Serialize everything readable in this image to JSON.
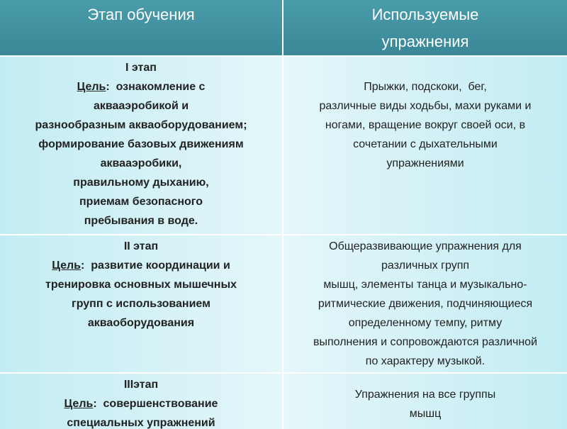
{
  "header": {
    "col1": "Этап обучения",
    "col2": [
      "Используемые",
      "упражнения"
    ]
  },
  "rows": [
    {
      "stage": "I этап",
      "goal_label": "Цель",
      "goal_lines": [
        ":  ознакомление с",
        "аквааэробикой и",
        "разнообразным акваоборудованием;",
        "формирование базовых движениям",
        "аквааэробики,",
        "правильному дыханию,",
        "приемам безопасного",
        "пребывания в воде."
      ],
      "exercises": [
        "Прыжки, подскоки,  бег,",
        "различные виды ходьбы, махи руками и",
        "ногами, вращение вокруг своей оси, в",
        "сочетании с дыхательными",
        "упражнениями"
      ]
    },
    {
      "stage": "II этап",
      "goal_label": "Цель",
      "goal_lines": [
        ":  развитие координации и",
        "тренировка основных мышечных",
        "групп с использованием",
        "акваоборудования"
      ],
      "exercises": [
        "Общеразвивающие упражнения для",
        "различных групп",
        "мышц, элементы танца и музыкально-",
        "ритмические движения, подчиняющиеся",
        "определенному темпу, ритму",
        "выполнения и сопровождаются различной",
        "по характеру музыкой."
      ]
    },
    {
      "stage": "IIIэтап",
      "goal_label": "Цель",
      "goal_lines": [
        ":  совершенствование",
        "специальных упражнений"
      ],
      "exercises": [
        "Упражнения на все группы",
        "мышц"
      ]
    }
  ]
}
